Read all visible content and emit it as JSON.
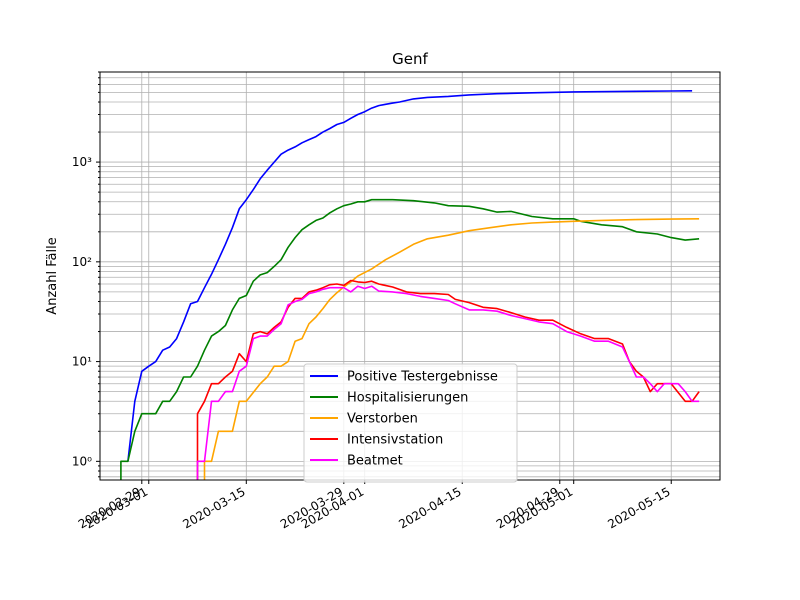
{
  "chart_data": {
    "type": "line",
    "title": "Genf",
    "xlabel": "",
    "ylabel": "Anzahl Fälle",
    "yscale": "log",
    "grid": true,
    "legend_position": "lower-center",
    "xlim": [
      "2020-02-23",
      "2020-05-22"
    ],
    "ylim": [
      0.65,
      8000
    ],
    "x_tick_labels": [
      {
        "date": "2020-02-29",
        "label": "2020-02-29"
      },
      {
        "date": "2020-03-01",
        "label": "2020-03-01"
      },
      {
        "date": "2020-03-15",
        "label": "2020-03-15"
      },
      {
        "date": "2020-03-29",
        "label": "2020-03-29"
      },
      {
        "date": "2020-04-01",
        "label": "2020-04-01"
      },
      {
        "date": "2020-04-15",
        "label": "2020-04-15"
      },
      {
        "date": "2020-04-29",
        "label": "2020-04-29"
      },
      {
        "date": "2020-05-01",
        "label": "2020-05-01"
      },
      {
        "date": "2020-05-15",
        "label": "2020-05-15"
      }
    ],
    "y_tick_labels": [
      {
        "value": 1,
        "label": "10⁰"
      },
      {
        "value": 10,
        "label": "10¹"
      },
      {
        "value": 100,
        "label": "10²"
      },
      {
        "value": 1000,
        "label": "10³"
      }
    ],
    "series": [
      {
        "name": "Positive Testergebnisse",
        "color": "#0000ff",
        "points": [
          [
            "2020-02-27",
            1
          ],
          [
            "2020-02-28",
            4
          ],
          [
            "2020-02-29",
            8
          ],
          [
            "2020-03-01",
            9
          ],
          [
            "2020-03-02",
            10
          ],
          [
            "2020-03-03",
            13
          ],
          [
            "2020-03-04",
            14
          ],
          [
            "2020-03-05",
            17
          ],
          [
            "2020-03-06",
            25
          ],
          [
            "2020-03-07",
            38
          ],
          [
            "2020-03-08",
            40
          ],
          [
            "2020-03-09",
            55
          ],
          [
            "2020-03-10",
            75
          ],
          [
            "2020-03-11",
            105
          ],
          [
            "2020-03-12",
            150
          ],
          [
            "2020-03-13",
            220
          ],
          [
            "2020-03-14",
            340
          ],
          [
            "2020-03-15",
            420
          ],
          [
            "2020-03-16",
            530
          ],
          [
            "2020-03-17",
            680
          ],
          [
            "2020-03-18",
            830
          ],
          [
            "2020-03-19",
            1000
          ],
          [
            "2020-03-20",
            1200
          ],
          [
            "2020-03-21",
            1320
          ],
          [
            "2020-03-22",
            1420
          ],
          [
            "2020-03-23",
            1560
          ],
          [
            "2020-03-24",
            1680
          ],
          [
            "2020-03-25",
            1800
          ],
          [
            "2020-03-26",
            2000
          ],
          [
            "2020-03-27",
            2170
          ],
          [
            "2020-03-28",
            2380
          ],
          [
            "2020-03-29",
            2500
          ],
          [
            "2020-03-30",
            2750
          ],
          [
            "2020-03-31",
            3000
          ],
          [
            "2020-04-01",
            3200
          ],
          [
            "2020-04-02",
            3480
          ],
          [
            "2020-04-03",
            3680
          ],
          [
            "2020-04-04",
            3800
          ],
          [
            "2020-04-05",
            3900
          ],
          [
            "2020-04-06",
            4000
          ],
          [
            "2020-04-08",
            4300
          ],
          [
            "2020-04-10",
            4450
          ],
          [
            "2020-04-13",
            4550
          ],
          [
            "2020-04-16",
            4720
          ],
          [
            "2020-04-20",
            4850
          ],
          [
            "2020-04-25",
            4950
          ],
          [
            "2020-05-01",
            5050
          ],
          [
            "2020-05-08",
            5110
          ],
          [
            "2020-05-15",
            5160
          ],
          [
            "2020-05-18",
            5180
          ]
        ]
      },
      {
        "name": "Hospitalisierungen",
        "color": "#008000",
        "points": [
          [
            "2020-02-26",
            0.6
          ],
          [
            "2020-02-26",
            1
          ],
          [
            "2020-02-27",
            1
          ],
          [
            "2020-02-28",
            2
          ],
          [
            "2020-02-29",
            3
          ],
          [
            "2020-03-02",
            3
          ],
          [
            "2020-03-03",
            4
          ],
          [
            "2020-03-04",
            4
          ],
          [
            "2020-03-05",
            5
          ],
          [
            "2020-03-06",
            7
          ],
          [
            "2020-03-07",
            7
          ],
          [
            "2020-03-08",
            9
          ],
          [
            "2020-03-09",
            13
          ],
          [
            "2020-03-10",
            18
          ],
          [
            "2020-03-11",
            20
          ],
          [
            "2020-03-12",
            23
          ],
          [
            "2020-03-13",
            33
          ],
          [
            "2020-03-14",
            43
          ],
          [
            "2020-03-15",
            46
          ],
          [
            "2020-03-16",
            64
          ],
          [
            "2020-03-17",
            74
          ],
          [
            "2020-03-18",
            78
          ],
          [
            "2020-03-19",
            90
          ],
          [
            "2020-03-20",
            105
          ],
          [
            "2020-03-21",
            140
          ],
          [
            "2020-03-22",
            175
          ],
          [
            "2020-03-23",
            210
          ],
          [
            "2020-03-24",
            235
          ],
          [
            "2020-03-25",
            260
          ],
          [
            "2020-03-26",
            275
          ],
          [
            "2020-03-27",
            310
          ],
          [
            "2020-03-28",
            340
          ],
          [
            "2020-03-29",
            365
          ],
          [
            "2020-03-30",
            380
          ],
          [
            "2020-03-31",
            400
          ],
          [
            "2020-04-01",
            400
          ],
          [
            "2020-04-02",
            420
          ],
          [
            "2020-04-05",
            420
          ],
          [
            "2020-04-08",
            410
          ],
          [
            "2020-04-11",
            390
          ],
          [
            "2020-04-13",
            365
          ],
          [
            "2020-04-16",
            360
          ],
          [
            "2020-04-18",
            340
          ],
          [
            "2020-04-20",
            315
          ],
          [
            "2020-04-22",
            320
          ],
          [
            "2020-04-25",
            285
          ],
          [
            "2020-04-28",
            270
          ],
          [
            "2020-05-01",
            270
          ],
          [
            "2020-05-02",
            255
          ],
          [
            "2020-05-05",
            235
          ],
          [
            "2020-05-08",
            225
          ],
          [
            "2020-05-10",
            200
          ],
          [
            "2020-05-13",
            190
          ],
          [
            "2020-05-15",
            175
          ],
          [
            "2020-05-17",
            165
          ],
          [
            "2020-05-19",
            170
          ]
        ]
      },
      {
        "name": "Verstorben",
        "color": "#ffa500",
        "points": [
          [
            "2020-03-09",
            0.6
          ],
          [
            "2020-03-09",
            1
          ],
          [
            "2020-03-10",
            1
          ],
          [
            "2020-03-11",
            2
          ],
          [
            "2020-03-13",
            2
          ],
          [
            "2020-03-14",
            4
          ],
          [
            "2020-03-15",
            4
          ],
          [
            "2020-03-17",
            6
          ],
          [
            "2020-03-18",
            7
          ],
          [
            "2020-03-19",
            9
          ],
          [
            "2020-03-20",
            9
          ],
          [
            "2020-03-21",
            10
          ],
          [
            "2020-03-22",
            16
          ],
          [
            "2020-03-23",
            17
          ],
          [
            "2020-03-24",
            24
          ],
          [
            "2020-03-25",
            28
          ],
          [
            "2020-03-26",
            34
          ],
          [
            "2020-03-27",
            42
          ],
          [
            "2020-03-28",
            49
          ],
          [
            "2020-03-29",
            56
          ],
          [
            "2020-03-30",
            63
          ],
          [
            "2020-03-31",
            72
          ],
          [
            "2020-04-02",
            85
          ],
          [
            "2020-04-04",
            105
          ],
          [
            "2020-04-06",
            125
          ],
          [
            "2020-04-08",
            150
          ],
          [
            "2020-04-10",
            170
          ],
          [
            "2020-04-13",
            185
          ],
          [
            "2020-04-16",
            205
          ],
          [
            "2020-04-19",
            220
          ],
          [
            "2020-04-22",
            235
          ],
          [
            "2020-04-25",
            245
          ],
          [
            "2020-04-28",
            250
          ],
          [
            "2020-05-01",
            255
          ],
          [
            "2020-05-05",
            260
          ],
          [
            "2020-05-10",
            265
          ],
          [
            "2020-05-15",
            268
          ],
          [
            "2020-05-19",
            270
          ]
        ]
      },
      {
        "name": "Intensivstation",
        "color": "#ff0000",
        "points": [
          [
            "2020-03-08",
            0.6
          ],
          [
            "2020-03-08",
            3
          ],
          [
            "2020-03-09",
            4
          ],
          [
            "2020-03-10",
            6
          ],
          [
            "2020-03-11",
            6
          ],
          [
            "2020-03-12",
            7
          ],
          [
            "2020-03-13",
            8
          ],
          [
            "2020-03-14",
            12
          ],
          [
            "2020-03-15",
            10
          ],
          [
            "2020-03-16",
            19
          ],
          [
            "2020-03-17",
            20
          ],
          [
            "2020-03-18",
            19
          ],
          [
            "2020-03-19",
            22
          ],
          [
            "2020-03-20",
            25
          ],
          [
            "2020-03-21",
            35
          ],
          [
            "2020-03-22",
            43
          ],
          [
            "2020-03-23",
            43
          ],
          [
            "2020-03-24",
            50
          ],
          [
            "2020-03-25",
            52
          ],
          [
            "2020-03-26",
            55
          ],
          [
            "2020-03-27",
            59
          ],
          [
            "2020-03-28",
            60
          ],
          [
            "2020-03-29",
            58
          ],
          [
            "2020-03-30",
            65
          ],
          [
            "2020-03-31",
            63
          ],
          [
            "2020-04-01",
            62
          ],
          [
            "2020-04-02",
            64
          ],
          [
            "2020-04-03",
            60
          ],
          [
            "2020-04-05",
            56
          ],
          [
            "2020-04-07",
            50
          ],
          [
            "2020-04-09",
            48
          ],
          [
            "2020-04-11",
            48
          ],
          [
            "2020-04-13",
            47
          ],
          [
            "2020-04-14",
            42
          ],
          [
            "2020-04-16",
            39
          ],
          [
            "2020-04-18",
            35
          ],
          [
            "2020-04-20",
            34
          ],
          [
            "2020-04-22",
            31
          ],
          [
            "2020-04-24",
            28
          ],
          [
            "2020-04-26",
            26
          ],
          [
            "2020-04-28",
            26
          ],
          [
            "2020-04-30",
            22
          ],
          [
            "2020-05-02",
            19
          ],
          [
            "2020-05-04",
            17
          ],
          [
            "2020-05-06",
            17
          ],
          [
            "2020-05-08",
            15
          ],
          [
            "2020-05-09",
            10
          ],
          [
            "2020-05-10",
            8
          ],
          [
            "2020-05-11",
            7
          ],
          [
            "2020-05-12",
            5
          ],
          [
            "2020-05-13",
            6
          ],
          [
            "2020-05-15",
            6
          ],
          [
            "2020-05-17",
            4
          ],
          [
            "2020-05-18",
            4
          ],
          [
            "2020-05-19",
            5
          ]
        ]
      },
      {
        "name": "Beatmet",
        "color": "#ff00ff",
        "points": [
          [
            "2020-03-08",
            0.6
          ],
          [
            "2020-03-08",
            1
          ],
          [
            "2020-03-09",
            1
          ],
          [
            "2020-03-10",
            4
          ],
          [
            "2020-03-11",
            4
          ],
          [
            "2020-03-12",
            5
          ],
          [
            "2020-03-13",
            5
          ],
          [
            "2020-03-14",
            8
          ],
          [
            "2020-03-15",
            9
          ],
          [
            "2020-03-16",
            17
          ],
          [
            "2020-03-17",
            18
          ],
          [
            "2020-03-18",
            18
          ],
          [
            "2020-03-19",
            21
          ],
          [
            "2020-03-20",
            24
          ],
          [
            "2020-03-21",
            37
          ],
          [
            "2020-03-22",
            40
          ],
          [
            "2020-03-23",
            42
          ],
          [
            "2020-03-24",
            48
          ],
          [
            "2020-03-25",
            50
          ],
          [
            "2020-03-26",
            53
          ],
          [
            "2020-03-27",
            55
          ],
          [
            "2020-03-28",
            55
          ],
          [
            "2020-03-29",
            55
          ],
          [
            "2020-03-30",
            50
          ],
          [
            "2020-03-31",
            57
          ],
          [
            "2020-04-01",
            54
          ],
          [
            "2020-04-02",
            57
          ],
          [
            "2020-04-03",
            51
          ],
          [
            "2020-04-05",
            50
          ],
          [
            "2020-04-07",
            48
          ],
          [
            "2020-04-09",
            45
          ],
          [
            "2020-04-11",
            43
          ],
          [
            "2020-04-13",
            41
          ],
          [
            "2020-04-14",
            38
          ],
          [
            "2020-04-16",
            33
          ],
          [
            "2020-04-18",
            33
          ],
          [
            "2020-04-20",
            32
          ],
          [
            "2020-04-22",
            29
          ],
          [
            "2020-04-24",
            27
          ],
          [
            "2020-04-26",
            25
          ],
          [
            "2020-04-28",
            24
          ],
          [
            "2020-04-30",
            20
          ],
          [
            "2020-05-02",
            18
          ],
          [
            "2020-05-04",
            16
          ],
          [
            "2020-05-06",
            16
          ],
          [
            "2020-05-08",
            14
          ],
          [
            "2020-05-09",
            10
          ],
          [
            "2020-05-10",
            7
          ],
          [
            "2020-05-11",
            7
          ],
          [
            "2020-05-12",
            6
          ],
          [
            "2020-05-13",
            5
          ],
          [
            "2020-05-14",
            6
          ],
          [
            "2020-05-16",
            6
          ],
          [
            "2020-05-17",
            5
          ],
          [
            "2020-05-18",
            4
          ],
          [
            "2020-05-19",
            4
          ]
        ]
      }
    ]
  }
}
